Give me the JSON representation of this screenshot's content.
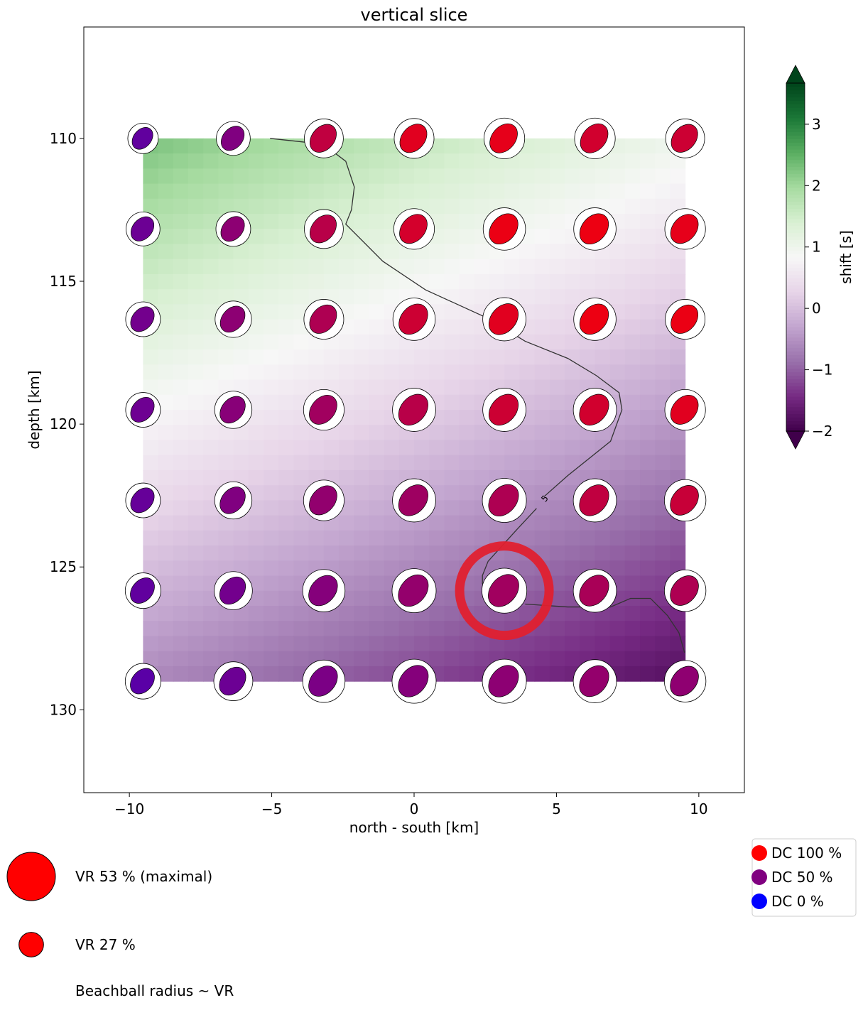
{
  "chart_data": {
    "type": "heatmap",
    "title": "vertical slice",
    "xlabel": "north - south [km]",
    "ylabel": "depth [km]",
    "xlim": [
      -11.6,
      11.6
    ],
    "ylim": [
      132.9,
      106.1
    ],
    "y_inverted": true,
    "xticks": [
      -10,
      -5,
      0,
      5,
      10
    ],
    "xtick_labels": [
      "−10",
      "−5",
      "0",
      "5",
      "10"
    ],
    "yticks": [
      110,
      115,
      120,
      125,
      130
    ],
    "ytick_labels": [
      "110",
      "115",
      "120",
      "125",
      "130"
    ],
    "grid": false,
    "x": [
      -9.52,
      -6.35,
      -3.17,
      0,
      3.17,
      6.35,
      9.52
    ],
    "y": [
      110,
      113.17,
      116.33,
      119.5,
      122.67,
      125.83,
      129
    ],
    "shift": [
      [
        2.3,
        2.08,
        1.87,
        1.65,
        1.43,
        1.22,
        1.0
      ],
      [
        1.82,
        1.6,
        1.39,
        1.18,
        0.96,
        0.75,
        0.53
      ],
      [
        1.33,
        1.12,
        0.91,
        0.7,
        0.49,
        0.28,
        0.07
      ],
      [
        0.85,
        0.64,
        0.44,
        0.23,
        0.02,
        -0.19,
        -0.4
      ],
      [
        0.37,
        0.16,
        -0.04,
        -0.25,
        -0.46,
        -0.66,
        -0.87
      ],
      [
        -0.12,
        -0.32,
        -0.52,
        -0.72,
        -0.93,
        -1.13,
        -1.33
      ],
      [
        -0.6,
        -0.8,
        -1.0,
        -1.2,
        -1.4,
        -1.6,
        -1.8
      ]
    ],
    "colorbar": {
      "label": "shift [s]",
      "colormap": "PRGn",
      "range": [
        -2,
        3.67
      ],
      "extend": "both",
      "ticks": [
        -2,
        -1,
        0,
        1,
        2,
        3
      ],
      "tick_labels": [
        "−2",
        "−1",
        "0",
        "1",
        "2",
        "3"
      ]
    },
    "beachballs": {
      "vr_percent": [
        [
          36,
          40,
          46,
          47,
          48,
          48,
          46
        ],
        [
          40,
          41,
          46,
          48,
          50,
          50,
          48
        ],
        [
          41,
          43,
          47,
          50,
          51,
          50,
          47
        ],
        [
          41,
          44,
          48,
          51,
          51,
          51,
          48
        ],
        [
          41,
          44,
          48,
          51,
          52,
          51,
          49
        ],
        [
          42,
          45,
          50,
          52,
          53,
          51,
          49
        ],
        [
          42,
          46,
          50,
          52,
          52,
          51,
          49
        ]
      ],
      "dc_percent": [
        [
          38,
          50,
          75,
          88,
          90,
          82,
          80
        ],
        [
          42,
          55,
          72,
          83,
          92,
          93,
          90
        ],
        [
          45,
          55,
          68,
          80,
          88,
          93,
          92
        ],
        [
          43,
          53,
          63,
          72,
          80,
          82,
          88
        ],
        [
          40,
          50,
          57,
          62,
          68,
          75,
          78
        ],
        [
          38,
          45,
          52,
          58,
          63,
          66,
          68
        ],
        [
          35,
          42,
          48,
          52,
          55,
          58,
          56
        ]
      ]
    },
    "best_solution": {
      "x": 3.17,
      "y": 125.83,
      "color": "#e0202f"
    },
    "contour": {
      "label": "5",
      "segments": [
        [
          [
            -5.06,
            110.0
          ],
          [
            -3.2,
            110.2
          ],
          [
            -2.4,
            110.8
          ],
          [
            -2.1,
            111.7
          ],
          [
            -2.2,
            112.5
          ],
          [
            -2.4,
            113.0
          ],
          [
            -1.1,
            114.3
          ],
          [
            0.4,
            115.3
          ],
          [
            2.6,
            116.3
          ],
          [
            3.9,
            117.1
          ],
          [
            5.4,
            117.7
          ],
          [
            6.4,
            118.3
          ],
          [
            7.2,
            118.9
          ],
          [
            7.3,
            119.5
          ],
          [
            6.9,
            120.6
          ],
          [
            5.4,
            121.8
          ],
          [
            4.55,
            122.55
          ]
        ],
        [
          [
            4.3,
            122.95
          ],
          [
            3.6,
            123.7
          ],
          [
            2.6,
            124.8
          ],
          [
            2.4,
            125.3
          ],
          [
            2.4,
            125.6
          ]
        ],
        [
          [
            3.9,
            126.3
          ],
          [
            5.4,
            126.4
          ],
          [
            6.9,
            126.4
          ],
          [
            7.6,
            126.1
          ],
          [
            8.3,
            126.1
          ],
          [
            8.9,
            126.7
          ],
          [
            9.3,
            127.3
          ],
          [
            9.5,
            128.0
          ]
        ]
      ]
    },
    "legend_vr": {
      "items": [
        {
          "label": "VR 53 % (maximal)",
          "vr": 53,
          "color": "#ff0000"
        },
        {
          "label": "VR 27 %",
          "vr": 27,
          "color": "#ff0000"
        }
      ],
      "note": "Beachball radius ~ VR"
    },
    "legend_dc": {
      "items": [
        {
          "label": "DC 100 %",
          "color": "#ff0000"
        },
        {
          "label": "DC 50 %",
          "color": "#800080"
        },
        {
          "label": "DC 0 %",
          "color": "#0000ff"
        }
      ]
    }
  }
}
